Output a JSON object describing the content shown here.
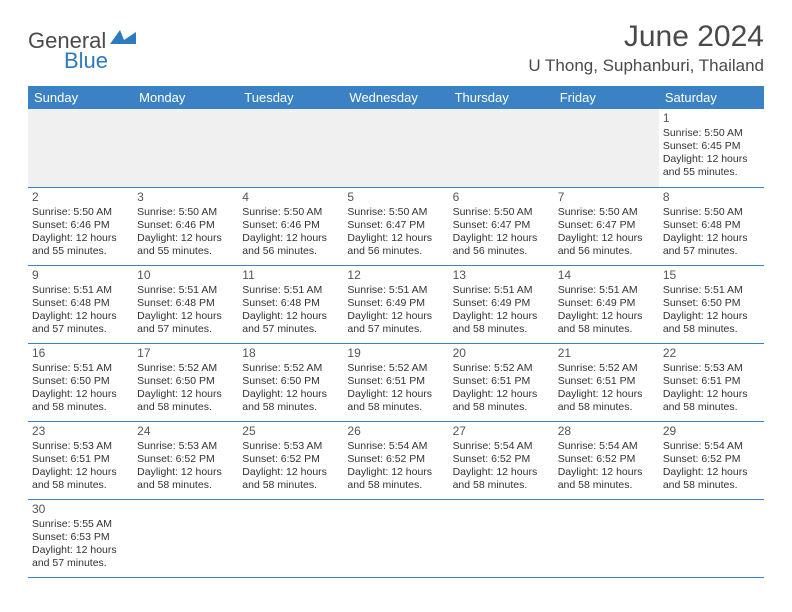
{
  "logo": {
    "part1": "General",
    "part2": "Blue"
  },
  "title": "June 2024",
  "location": "U Thong, Suphanburi, Thailand",
  "colors": {
    "header_bg": "#3b82c4",
    "header_text": "#ffffff",
    "logo_gray": "#4a4a4a",
    "logo_blue": "#2b7bbf",
    "cell_border": "#3b82c4",
    "blank_bg": "#f0f0f0"
  },
  "day_headers": [
    "Sunday",
    "Monday",
    "Tuesday",
    "Wednesday",
    "Thursday",
    "Friday",
    "Saturday"
  ],
  "weeks": [
    [
      null,
      null,
      null,
      null,
      null,
      null,
      {
        "n": "1",
        "sunrise": "5:50 AM",
        "sunset": "6:45 PM",
        "daylight": "12 hours and 55 minutes."
      }
    ],
    [
      {
        "n": "2",
        "sunrise": "5:50 AM",
        "sunset": "6:46 PM",
        "daylight": "12 hours and 55 minutes."
      },
      {
        "n": "3",
        "sunrise": "5:50 AM",
        "sunset": "6:46 PM",
        "daylight": "12 hours and 55 minutes."
      },
      {
        "n": "4",
        "sunrise": "5:50 AM",
        "sunset": "6:46 PM",
        "daylight": "12 hours and 56 minutes."
      },
      {
        "n": "5",
        "sunrise": "5:50 AM",
        "sunset": "6:47 PM",
        "daylight": "12 hours and 56 minutes."
      },
      {
        "n": "6",
        "sunrise": "5:50 AM",
        "sunset": "6:47 PM",
        "daylight": "12 hours and 56 minutes."
      },
      {
        "n": "7",
        "sunrise": "5:50 AM",
        "sunset": "6:47 PM",
        "daylight": "12 hours and 56 minutes."
      },
      {
        "n": "8",
        "sunrise": "5:50 AM",
        "sunset": "6:48 PM",
        "daylight": "12 hours and 57 minutes."
      }
    ],
    [
      {
        "n": "9",
        "sunrise": "5:51 AM",
        "sunset": "6:48 PM",
        "daylight": "12 hours and 57 minutes."
      },
      {
        "n": "10",
        "sunrise": "5:51 AM",
        "sunset": "6:48 PM",
        "daylight": "12 hours and 57 minutes."
      },
      {
        "n": "11",
        "sunrise": "5:51 AM",
        "sunset": "6:48 PM",
        "daylight": "12 hours and 57 minutes."
      },
      {
        "n": "12",
        "sunrise": "5:51 AM",
        "sunset": "6:49 PM",
        "daylight": "12 hours and 57 minutes."
      },
      {
        "n": "13",
        "sunrise": "5:51 AM",
        "sunset": "6:49 PM",
        "daylight": "12 hours and 58 minutes."
      },
      {
        "n": "14",
        "sunrise": "5:51 AM",
        "sunset": "6:49 PM",
        "daylight": "12 hours and 58 minutes."
      },
      {
        "n": "15",
        "sunrise": "5:51 AM",
        "sunset": "6:50 PM",
        "daylight": "12 hours and 58 minutes."
      }
    ],
    [
      {
        "n": "16",
        "sunrise": "5:51 AM",
        "sunset": "6:50 PM",
        "daylight": "12 hours and 58 minutes."
      },
      {
        "n": "17",
        "sunrise": "5:52 AM",
        "sunset": "6:50 PM",
        "daylight": "12 hours and 58 minutes."
      },
      {
        "n": "18",
        "sunrise": "5:52 AM",
        "sunset": "6:50 PM",
        "daylight": "12 hours and 58 minutes."
      },
      {
        "n": "19",
        "sunrise": "5:52 AM",
        "sunset": "6:51 PM",
        "daylight": "12 hours and 58 minutes."
      },
      {
        "n": "20",
        "sunrise": "5:52 AM",
        "sunset": "6:51 PM",
        "daylight": "12 hours and 58 minutes."
      },
      {
        "n": "21",
        "sunrise": "5:52 AM",
        "sunset": "6:51 PM",
        "daylight": "12 hours and 58 minutes."
      },
      {
        "n": "22",
        "sunrise": "5:53 AM",
        "sunset": "6:51 PM",
        "daylight": "12 hours and 58 minutes."
      }
    ],
    [
      {
        "n": "23",
        "sunrise": "5:53 AM",
        "sunset": "6:51 PM",
        "daylight": "12 hours and 58 minutes."
      },
      {
        "n": "24",
        "sunrise": "5:53 AM",
        "sunset": "6:52 PM",
        "daylight": "12 hours and 58 minutes."
      },
      {
        "n": "25",
        "sunrise": "5:53 AM",
        "sunset": "6:52 PM",
        "daylight": "12 hours and 58 minutes."
      },
      {
        "n": "26",
        "sunrise": "5:54 AM",
        "sunset": "6:52 PM",
        "daylight": "12 hours and 58 minutes."
      },
      {
        "n": "27",
        "sunrise": "5:54 AM",
        "sunset": "6:52 PM",
        "daylight": "12 hours and 58 minutes."
      },
      {
        "n": "28",
        "sunrise": "5:54 AM",
        "sunset": "6:52 PM",
        "daylight": "12 hours and 58 minutes."
      },
      {
        "n": "29",
        "sunrise": "5:54 AM",
        "sunset": "6:52 PM",
        "daylight": "12 hours and 58 minutes."
      }
    ],
    [
      {
        "n": "30",
        "sunrise": "5:55 AM",
        "sunset": "6:53 PM",
        "daylight": "12 hours and 57 minutes."
      },
      null,
      null,
      null,
      null,
      null,
      null
    ]
  ],
  "labels": {
    "sunrise": "Sunrise:",
    "sunset": "Sunset:",
    "daylight": "Daylight:"
  }
}
